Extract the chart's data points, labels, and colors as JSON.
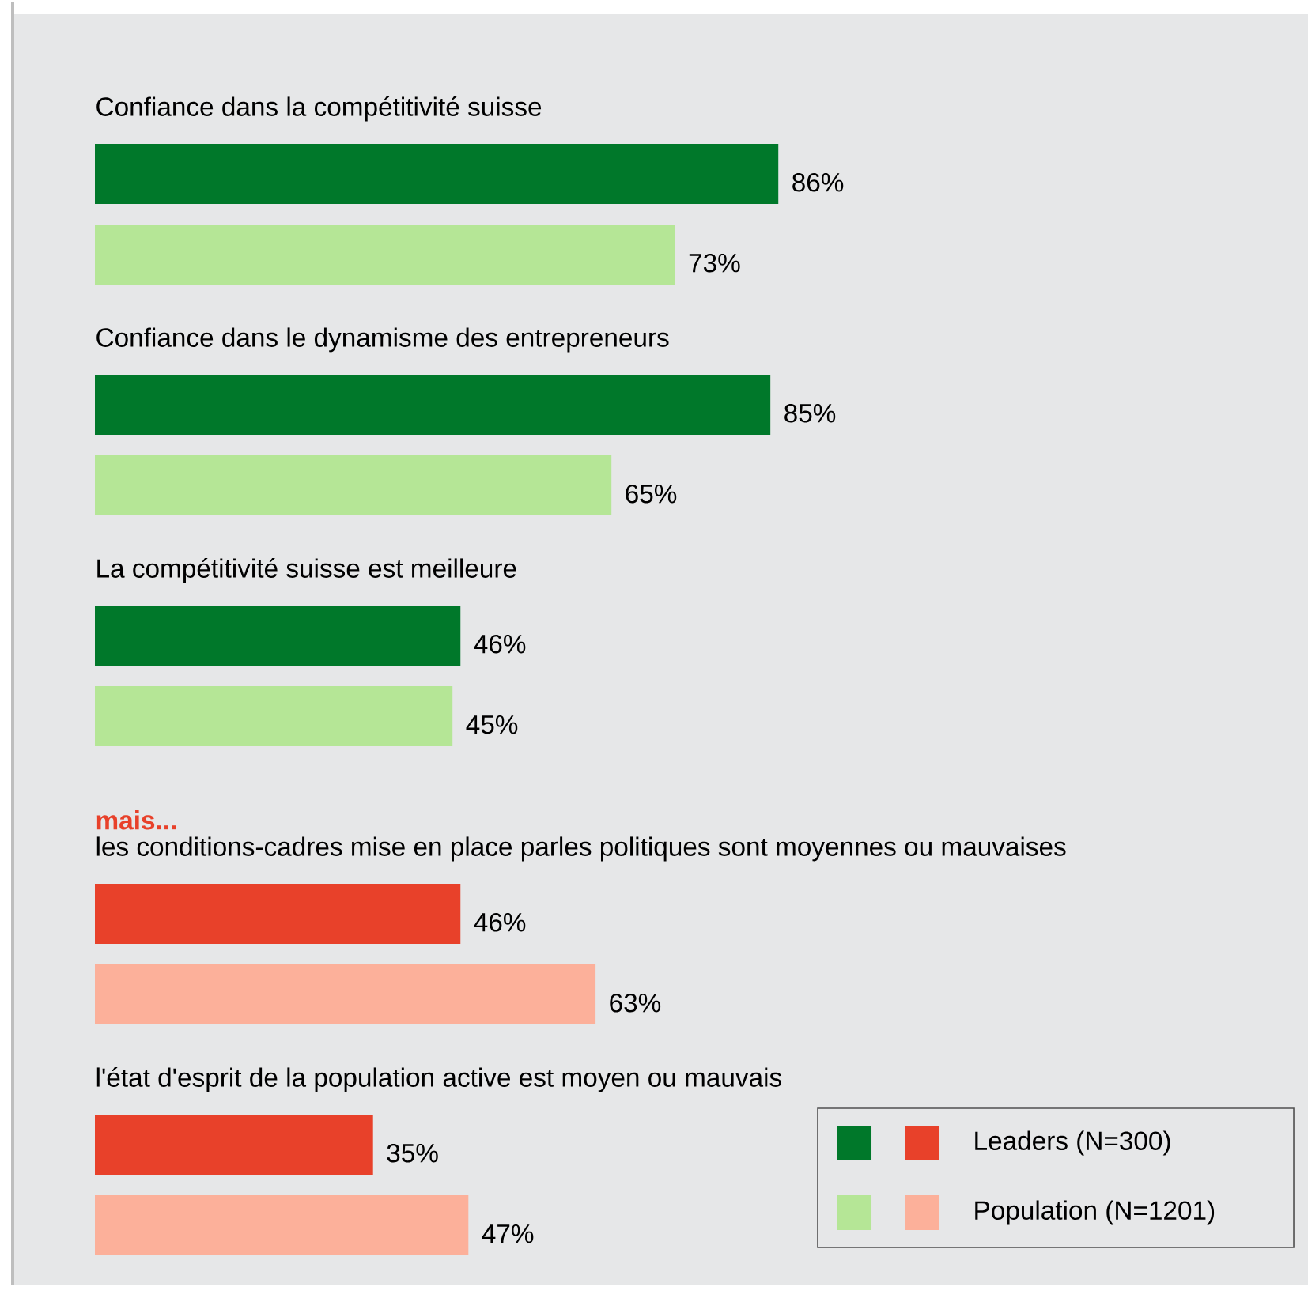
{
  "chart_data": {
    "type": "bar",
    "orientation": "horizontal",
    "categories": [
      "Confiance dans la compétitivité suisse",
      "Confiance dans le dynamisme des entrepreneurs",
      "La compétitivité suisse est meilleure",
      "les conditions-cadres mise en place parles politiques sont moyennes ou mauvaises",
      "l'état d'esprit de la population active est moyen ou mauvais"
    ],
    "series": [
      {
        "name": "Leaders (N=300)",
        "colors": [
          "#00782a",
          "#00782a",
          "#00782a",
          "#e8412a",
          "#e8412a"
        ],
        "values": [
          86,
          85,
          46,
          46,
          35
        ],
        "value_labels": [
          "86%",
          "85%",
          "46%",
          "46%",
          "35%"
        ]
      },
      {
        "name": "Population (N=1201)",
        "colors": [
          "#b5e696",
          "#b5e696",
          "#b5e696",
          "#fcb09a",
          "#fcb09a"
        ],
        "values": [
          73,
          65,
          45,
          63,
          47
        ],
        "value_labels": [
          "73%",
          "65%",
          "45%",
          "63%",
          "47%"
        ]
      }
    ],
    "annotations": [
      "mais..."
    ],
    "legend": "bottom right"
  }
}
